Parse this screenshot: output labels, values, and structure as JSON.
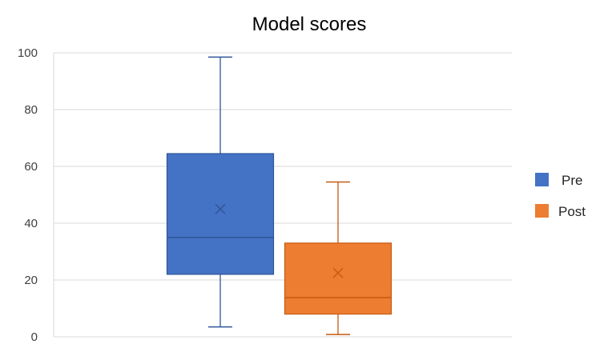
{
  "chart_data": {
    "type": "box",
    "title": "Model scores",
    "xlabel": "",
    "ylabel": "",
    "ylim": [
      0,
      100
    ],
    "yticks": [
      "100",
      "80",
      "60",
      "40",
      "20",
      "0"
    ],
    "ytick_values": [
      100,
      80,
      60,
      40,
      20,
      0
    ],
    "grid": true,
    "legend_position": "right",
    "series": [
      {
        "name": "Pre",
        "color": "#4472C4",
        "min": 3.5,
        "q1": 22,
        "median": 35,
        "q3": 64.5,
        "max": 98.5,
        "mean": 45
      },
      {
        "name": "Post",
        "color": "#ED7D31",
        "min": 0.8,
        "q1": 8,
        "median": 13.8,
        "q3": 33,
        "max": 54.5,
        "mean": 22.5
      }
    ]
  }
}
